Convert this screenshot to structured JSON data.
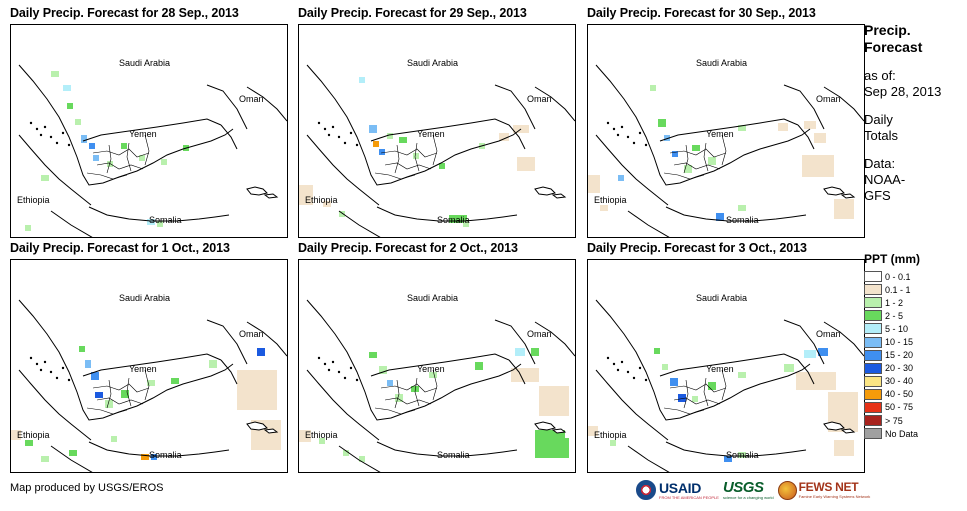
{
  "panels": [
    {
      "title": "Daily Precip. Forecast for 28 Sep., 2013",
      "labels": {
        "saudi": "Saudi Arabia",
        "oman": "Oman",
        "yemen": "Yemen",
        "ethiopia": "Ethiopia",
        "somalia": "Somalia"
      }
    },
    {
      "title": "Daily Precip. Forecast for 29 Sep., 2013",
      "labels": {
        "saudi": "Saudi Arabia",
        "oman": "Oman",
        "yemen": "Yemen",
        "ethiopia": "Ethiopia",
        "somalia": "Somalia"
      }
    },
    {
      "title": "Daily Precip. Forecast for 30 Sep., 2013",
      "labels": {
        "saudi": "Saudi Arabia",
        "oman": "Oman",
        "yemen": "Yemen",
        "ethiopia": "Ethiopia",
        "somalia": "Somalia"
      }
    },
    {
      "title": "Daily Precip. Forecast for 1 Oct., 2013",
      "labels": {
        "saudi": "Saudi Arabia",
        "oman": "Oman",
        "yemen": "Yemen",
        "ethiopia": "Ethiopia",
        "somalia": "Somalia"
      }
    },
    {
      "title": "Daily Precip. Forecast for 2 Oct., 2013",
      "labels": {
        "saudi": "Saudi Arabia",
        "oman": "Oman",
        "yemen": "Yemen",
        "ethiopia": "Ethiopia",
        "somalia": "Somalia"
      }
    },
    {
      "title": "Daily Precip. Forecast for 3 Oct., 2013",
      "labels": {
        "saudi": "Saudi Arabia",
        "oman": "Oman",
        "yemen": "Yemen",
        "ethiopia": "Ethiopia",
        "somalia": "Somalia"
      }
    }
  ],
  "side": {
    "title_line1": "Precip.",
    "title_line2": "Forecast",
    "asof_line1": "as of:",
    "asof_line2": "Sep 28, 2013",
    "totals_line1": "Daily",
    "totals_line2": "Totals",
    "data_line1": "Data:",
    "data_line2": "NOAA-",
    "data_line3": "GFS"
  },
  "legend": {
    "title": "PPT (mm)",
    "items": [
      {
        "label": "0 - 0.1",
        "color": "#ffffff"
      },
      {
        "label": "0.1 - 1",
        "color": "#f3e3cc"
      },
      {
        "label": "1 - 2",
        "color": "#b9f0ad"
      },
      {
        "label": "2 - 5",
        "color": "#68d95d"
      },
      {
        "label": "5 - 10",
        "color": "#b3eef9"
      },
      {
        "label": "10 - 15",
        "color": "#7bbdf5"
      },
      {
        "label": "15 - 20",
        "color": "#3f8ff0"
      },
      {
        "label": "20 - 30",
        "color": "#1b5ae0"
      },
      {
        "label": "30 - 40",
        "color": "#fbe584"
      },
      {
        "label": "40 - 50",
        "color": "#f59b0a"
      },
      {
        "label": "50 - 75",
        "color": "#e63217"
      },
      {
        "label": "> 75",
        "color": "#a8231e"
      },
      {
        "label": "No Data",
        "color": "#a0a0a0"
      }
    ]
  },
  "credit": "Map produced by USGS/EROS",
  "logos": {
    "usaid": "USAID",
    "usaid_tag": "FROM THE AMERICAN PEOPLE",
    "usgs": "USGS",
    "usgs_tag": "science for a changing world",
    "fews": "FEWS NET",
    "fews_tag": "Famine Early Warning Systems Network"
  }
}
